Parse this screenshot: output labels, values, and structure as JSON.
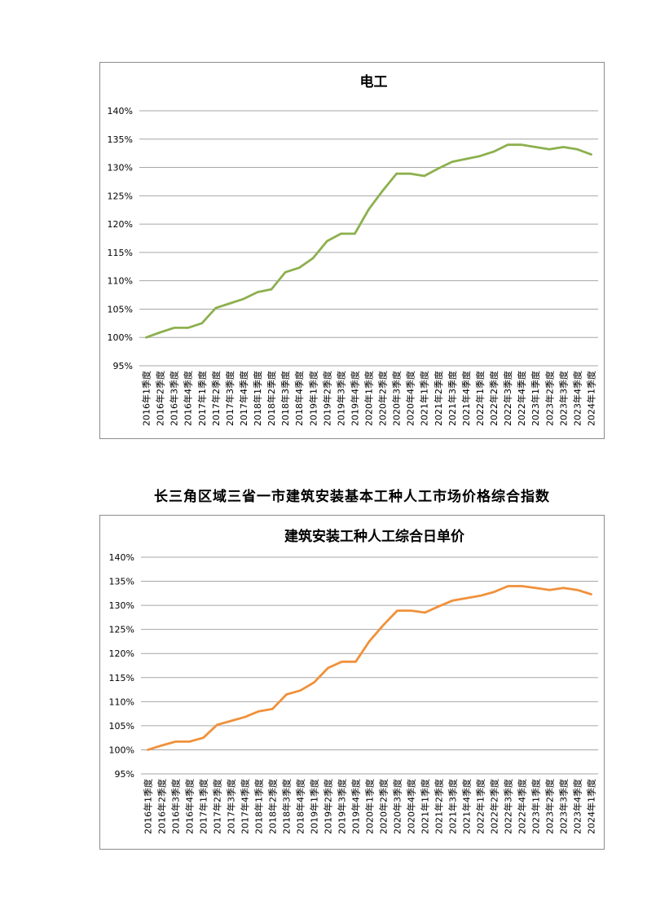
{
  "page": {
    "heading": "长三角区域三省一市建筑安装基本工种人工市场价格综合指数"
  },
  "chart_data": [
    {
      "type": "line",
      "title": "电工",
      "xlabel": "",
      "ylabel": "",
      "ylim": [
        0.95,
        1.4
      ],
      "yticks": [
        "95%",
        "100%",
        "105%",
        "110%",
        "115%",
        "120%",
        "125%",
        "130%",
        "135%",
        "140%"
      ],
      "grid": true,
      "legend": "none",
      "color": "#8db04e",
      "categories": [
        "2016年1季度",
        "2016年2季度",
        "2016年3季度",
        "2016年4季度",
        "2017年1季度",
        "2017年2季度",
        "2017年3季度",
        "2017年4季度",
        "2018年1季度",
        "2018年2季度",
        "2018年3季度",
        "2018年4季度",
        "2019年1季度",
        "2019年2季度",
        "2019年3季度",
        "2019年4季度",
        "2020年1季度",
        "2020年2季度",
        "2020年3季度",
        "2020年4季度",
        "2021年1季度",
        "2021年2季度",
        "2021年3季度",
        "2021年4季度",
        "2022年1季度",
        "2022年2季度",
        "2022年3季度",
        "2022年4季度",
        "2023年1季度",
        "2023年2季度",
        "2023年3季度",
        "2023年4季度",
        "2024年1季度"
      ],
      "values": [
        1.0,
        1.009,
        1.017,
        1.017,
        1.025,
        1.052,
        1.06,
        1.068,
        1.08,
        1.085,
        1.115,
        1.123,
        1.14,
        1.17,
        1.183,
        1.183,
        1.226,
        1.259,
        1.289,
        1.289,
        1.285,
        1.298,
        1.31,
        1.315,
        1.32,
        1.328,
        1.34,
        1.34,
        1.336,
        1.332,
        1.336,
        1.332,
        1.323
      ]
    },
    {
      "type": "line",
      "title": "建筑安装工种人工综合日单价",
      "xlabel": "",
      "ylabel": "",
      "ylim": [
        0.95,
        1.4
      ],
      "yticks": [
        "95%",
        "100%",
        "105%",
        "110%",
        "115%",
        "120%",
        "125%",
        "130%",
        "135%",
        "140%"
      ],
      "grid": true,
      "legend": "none",
      "color": "#f0913a",
      "categories": [
        "2016年1季度",
        "2016年2季度",
        "2016年3季度",
        "2016年4季度",
        "2017年1季度",
        "2017年2季度",
        "2017年3季度",
        "2017年4季度",
        "2018年1季度",
        "2018年2季度",
        "2018年3季度",
        "2018年4季度",
        "2019年1季度",
        "2019年2季度",
        "2019年3季度",
        "2019年4季度",
        "2020年1季度",
        "2020年2季度",
        "2020年3季度",
        "2020年4季度",
        "2021年1季度",
        "2021年2季度",
        "2021年3季度",
        "2021年4季度",
        "2022年1季度",
        "2022年2季度",
        "2022年3季度",
        "2022年4季度",
        "2023年1季度",
        "2023年2季度",
        "2023年3季度",
        "2023年4季度",
        "2024年1季度"
      ],
      "values": [
        1.0,
        1.009,
        1.017,
        1.017,
        1.025,
        1.052,
        1.06,
        1.068,
        1.08,
        1.085,
        1.115,
        1.123,
        1.14,
        1.17,
        1.183,
        1.183,
        1.226,
        1.259,
        1.289,
        1.289,
        1.285,
        1.298,
        1.31,
        1.315,
        1.32,
        1.328,
        1.34,
        1.34,
        1.336,
        1.332,
        1.336,
        1.332,
        1.323
      ]
    }
  ]
}
